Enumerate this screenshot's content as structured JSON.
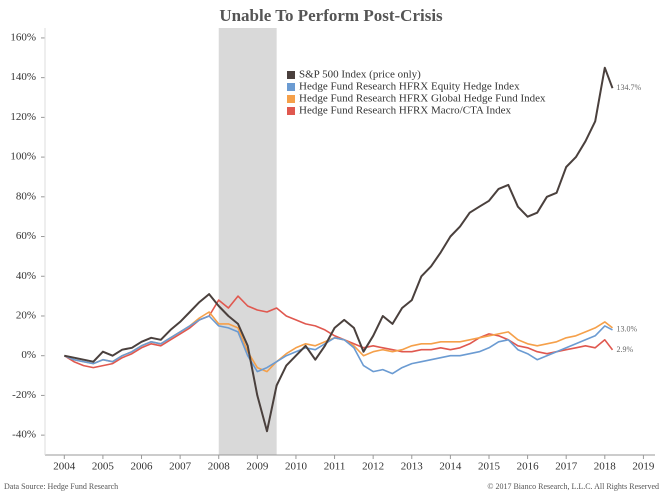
{
  "chart_data": {
    "type": "line",
    "title": "Unable To Perform Post-Crisis",
    "source": "Data Source: Hedge Fund Research",
    "copyright": "© 2017 Bianco Research, L.L.C. All Rights Reserved",
    "x": [
      2004,
      2004.25,
      2004.5,
      2004.75,
      2005,
      2005.25,
      2005.5,
      2005.75,
      2006,
      2006.25,
      2006.5,
      2006.75,
      2007,
      2007.25,
      2007.5,
      2007.75,
      2008,
      2008.25,
      2008.5,
      2008.75,
      2009,
      2009.25,
      2009.5,
      2009.75,
      2010,
      2010.25,
      2010.5,
      2010.75,
      2011,
      2011.25,
      2011.5,
      2011.75,
      2012,
      2012.25,
      2012.5,
      2012.75,
      2013,
      2013.25,
      2013.5,
      2013.75,
      2014,
      2014.25,
      2014.5,
      2014.75,
      2015,
      2015.25,
      2015.5,
      2015.75,
      2016,
      2016.25,
      2016.5,
      2016.75,
      2017,
      2017.25,
      2017.5,
      2017.75,
      2018,
      2018.2
    ],
    "series": [
      {
        "name": "S&P 500 Index (price only)",
        "color": "#4a403d",
        "values": [
          0,
          -1,
          -2,
          -3,
          2,
          0,
          3,
          4,
          7,
          9,
          8,
          13,
          17,
          22,
          27,
          31,
          25,
          20,
          16,
          5,
          -20,
          -38,
          -15,
          -5,
          0,
          5,
          -2,
          5,
          14,
          18,
          14,
          2,
          10,
          20,
          16,
          24,
          28,
          40,
          45,
          52,
          60,
          65,
          72,
          75,
          78,
          84,
          86,
          75,
          70,
          72,
          80,
          82,
          95,
          100,
          108,
          118,
          145,
          134.7
        ],
        "value_labels": [
          null,
          null,
          null,
          null,
          null,
          null,
          null,
          null,
          null,
          null,
          null,
          null,
          null,
          null,
          null,
          null,
          null,
          null,
          null,
          null,
          null,
          null,
          null,
          null,
          null,
          null,
          null,
          null,
          null,
          null,
          null,
          null,
          null,
          null,
          null,
          null,
          null,
          null,
          null,
          null,
          null,
          null,
          null,
          null,
          null,
          null,
          null,
          null,
          null,
          null,
          null,
          null,
          null,
          null,
          null,
          null,
          null,
          "134.7%"
        ]
      },
      {
        "name": "Hedge Fund Research HFRX Equity Hedge Index",
        "color": "#6b9bd2",
        "values": [
          0,
          -2,
          -3,
          -4,
          -2,
          -3,
          0,
          2,
          5,
          7,
          6,
          9,
          12,
          15,
          18,
          20,
          15,
          14,
          12,
          0,
          -8,
          -6,
          -3,
          0,
          2,
          4,
          3,
          6,
          9,
          8,
          4,
          -5,
          -8,
          -7,
          -9,
          -6,
          -4,
          -3,
          -2,
          -1,
          0,
          0,
          1,
          2,
          4,
          7,
          8,
          3,
          1,
          -2,
          0,
          2,
          4,
          6,
          8,
          10,
          15,
          13.0
        ],
        "value_labels": [
          null,
          null,
          null,
          null,
          null,
          null,
          null,
          null,
          null,
          null,
          null,
          null,
          null,
          null,
          null,
          null,
          null,
          null,
          null,
          null,
          null,
          null,
          null,
          null,
          null,
          null,
          null,
          null,
          null,
          null,
          null,
          null,
          null,
          null,
          null,
          null,
          null,
          null,
          null,
          null,
          null,
          null,
          null,
          null,
          null,
          null,
          null,
          null,
          null,
          null,
          null,
          null,
          null,
          null,
          null,
          null,
          null,
          "13.0%"
        ]
      },
      {
        "name": "Hedge Fund Research HFRX Global Hedge Fund Index",
        "color": "#f5a04a",
        "values": [
          0,
          -2,
          -3,
          -4,
          -2,
          -3,
          0,
          2,
          5,
          7,
          6,
          9,
          12,
          15,
          19,
          22,
          16,
          16,
          14,
          2,
          -6,
          -8,
          -3,
          1,
          4,
          6,
          5,
          7,
          9,
          8,
          5,
          0,
          2,
          3,
          2,
          3,
          5,
          6,
          6,
          7,
          7,
          7,
          8,
          9,
          10,
          11,
          12,
          8,
          6,
          5,
          6,
          7,
          9,
          10,
          12,
          14,
          17,
          14
        ]
      },
      {
        "name": "Hedge Fund Research HFRX Macro/CTA Index",
        "color": "#e0584f",
        "values": [
          0,
          -3,
          -5,
          -6,
          -5,
          -4,
          -1,
          1,
          4,
          6,
          5,
          8,
          11,
          14,
          18,
          20,
          28,
          24,
          30,
          25,
          23,
          22,
          24,
          20,
          18,
          16,
          15,
          13,
          10,
          8,
          6,
          4,
          5,
          4,
          3,
          2,
          2,
          3,
          3,
          4,
          3,
          4,
          6,
          9,
          11,
          10,
          8,
          5,
          4,
          2,
          1,
          2,
          3,
          4,
          5,
          4,
          8,
          2.9
        ],
        "value_labels": [
          null,
          null,
          null,
          null,
          null,
          null,
          null,
          null,
          null,
          null,
          null,
          null,
          null,
          null,
          null,
          null,
          null,
          null,
          null,
          null,
          null,
          null,
          null,
          null,
          null,
          null,
          null,
          null,
          null,
          null,
          null,
          null,
          null,
          null,
          null,
          null,
          null,
          null,
          null,
          null,
          null,
          null,
          null,
          null,
          null,
          null,
          null,
          null,
          null,
          null,
          null,
          null,
          null,
          null,
          null,
          null,
          null,
          "2.9%"
        ]
      }
    ],
    "shade": [
      2008.0,
      2009.5
    ],
    "shade_color": "#d9d9d9",
    "xlim": [
      2003.5,
      2019.3
    ],
    "xticks": [
      2004,
      2005,
      2006,
      2007,
      2008,
      2009,
      2010,
      2011,
      2012,
      2013,
      2014,
      2015,
      2016,
      2017,
      2018,
      2019
    ],
    "ylim": [
      -50,
      165
    ],
    "yticks": [
      {
        "value": -40,
        "label": "-40%"
      },
      {
        "value": -20,
        "label": "-20%"
      },
      {
        "value": 0,
        "label": "0%"
      },
      {
        "value": 20,
        "label": "20%"
      },
      {
        "value": 40,
        "label": "40%"
      },
      {
        "value": 60,
        "label": "60%"
      },
      {
        "value": 80,
        "label": "80%"
      },
      {
        "value": 100,
        "label": "100%"
      },
      {
        "value": 120,
        "label": "120%"
      },
      {
        "value": 140,
        "label": "140%"
      },
      {
        "value": 160,
        "label": "160%"
      }
    ],
    "grid": false,
    "legend_loc": "upper center"
  }
}
